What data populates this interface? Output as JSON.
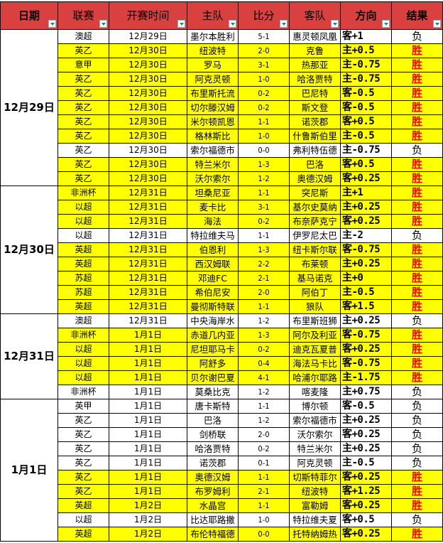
{
  "headers": {
    "date": "日期",
    "league": "联赛",
    "time": "开赛时间",
    "home": "主队",
    "score": "比分",
    "away": "客队",
    "direction": "方向",
    "result": "结果"
  },
  "colors": {
    "header_bg": "#d94141",
    "win_row": "#ffff00",
    "win_text": "#ff0000",
    "filter_arrow": "#1a8a6a"
  },
  "groups": [
    {
      "date": "12月29日",
      "rows": [
        {
          "league": "澳超",
          "time": "12月29日",
          "home": "墨尔本胜利",
          "score": "5-1",
          "away": "惠灵顿凤凰",
          "direction": "客+1",
          "result": "负"
        },
        {
          "league": "英乙",
          "time": "12月30日",
          "home": "纽波特",
          "score": "2-0",
          "away": "克鲁",
          "direction": "主+0.5",
          "result": "胜"
        },
        {
          "league": "意甲",
          "time": "12月30日",
          "home": "罗马",
          "score": "3-1",
          "away": "热那亚",
          "direction": "主-0.75",
          "result": "胜"
        },
        {
          "league": "英乙",
          "time": "12月30日",
          "home": "阿克灵顿",
          "score": "1-0",
          "away": "哈洛贾特",
          "direction": "主-0.75",
          "result": "胜"
        },
        {
          "league": "英乙",
          "time": "12月30日",
          "home": "布里斯托流",
          "score": "0-2",
          "away": "巴尼特",
          "direction": "客-0.5",
          "result": "胜"
        },
        {
          "league": "英乙",
          "time": "12月30日",
          "home": "切尔滕汉姆",
          "score": "0-2",
          "away": "斯文登",
          "direction": "客-0.5",
          "result": "胜"
        },
        {
          "league": "英乙",
          "time": "12月30日",
          "home": "米尔顿凯恩",
          "score": "1-1",
          "away": "诺茨郡",
          "direction": "客+0.5",
          "result": "胜"
        },
        {
          "league": "英乙",
          "time": "12月30日",
          "home": "格林斯比",
          "score": "1-0",
          "away": "什鲁斯伯里",
          "direction": "主-0.5",
          "result": "胜"
        },
        {
          "league": "英乙",
          "time": "12月30日",
          "home": "索尔福德市",
          "score": "0-0",
          "away": "弗利特伍德",
          "direction": "主-0.75",
          "result": "负"
        },
        {
          "league": "英乙",
          "time": "12月30日",
          "home": "特兰米尔",
          "score": "1-3",
          "away": "巴洛",
          "direction": "客+0.5",
          "result": "胜"
        },
        {
          "league": "英乙",
          "time": "12月30日",
          "home": "沃尔索尔",
          "score": "1-2",
          "away": "奥德汉姆",
          "direction": "客+0.25",
          "result": "胜"
        }
      ]
    },
    {
      "date": "12月30日",
      "rows": [
        {
          "league": "非洲杯",
          "time": "12月31日",
          "home": "坦桑尼亚",
          "score": "1-1",
          "away": "突尼斯",
          "direction": "主+1",
          "result": "胜"
        },
        {
          "league": "以超",
          "time": "12月31日",
          "home": "麦卡比",
          "score": "3-1",
          "away": "基尔史莫纳",
          "direction": "主+0.25",
          "result": "胜"
        },
        {
          "league": "以超",
          "time": "12月31日",
          "home": "海法",
          "score": "0-2",
          "away": "布奈萨克宁",
          "direction": "客+0.25",
          "result": "胜"
        },
        {
          "league": "以超",
          "time": "12月31日",
          "home": "特拉维夫马",
          "score": "1-1",
          "away": "伊罗尼太巴",
          "direction": "主-2",
          "result": "负"
        },
        {
          "league": "英超",
          "time": "12月31日",
          "home": "伯恩利",
          "score": "1-3",
          "away": "纽卡斯尔联",
          "direction": "客-0.75",
          "result": "胜"
        },
        {
          "league": "英超",
          "time": "12月31日",
          "home": "西汉姆联",
          "score": "2-2",
          "away": "布莱顿",
          "direction": "主+0.25",
          "result": "胜"
        },
        {
          "league": "苏超",
          "time": "12月31日",
          "home": "邓迪FC",
          "score": "2-1",
          "away": "基马诺克",
          "direction": "主+0",
          "result": "胜"
        },
        {
          "league": "苏超",
          "time": "12月31日",
          "home": "希伯尼安",
          "score": "2-0",
          "away": "阿伯丁",
          "direction": "主-0.5",
          "result": "胜"
        },
        {
          "league": "英超",
          "time": "12月31日",
          "home": "曼彻斯特联",
          "score": "1-1",
          "away": "狼队",
          "direction": "客+1.5",
          "result": "胜"
        }
      ]
    },
    {
      "date": "12月31日",
      "rows": [
        {
          "league": "澳超",
          "time": "12月31日",
          "home": "中央海岸水",
          "score": "1-2",
          "away": "布里斯班狮",
          "direction": "主+0.25",
          "result": "负"
        },
        {
          "league": "非洲杯",
          "time": "1月1日",
          "home": "赤道几内亚",
          "score": "1-3",
          "away": "阿尔及利亚",
          "direction": "客-0.75",
          "result": "胜"
        },
        {
          "league": "以超",
          "time": "1月1日",
          "home": "尼坦耶马卡",
          "score": "0-2",
          "away": "迪克瓦夏普",
          "direction": "客+0.25",
          "result": "胜"
        },
        {
          "league": "以超",
          "time": "1月1日",
          "home": "阿舒多",
          "score": "0-4",
          "away": "海法马卡比",
          "direction": "客-0.75",
          "result": "胜"
        },
        {
          "league": "以超",
          "time": "1月1日",
          "home": "贝尔谢巴夏",
          "score": "4-1",
          "away": "哈浦尔耶路",
          "direction": "主-1.75",
          "result": "胜"
        },
        {
          "league": "非洲杯",
          "time": "1月1日",
          "home": "莫桑比克",
          "score": "1-2",
          "away": "喀麦隆",
          "direction": "主+0.75",
          "result": "负"
        }
      ]
    },
    {
      "date": "1月1日",
      "rows": [
        {
          "league": "英甲",
          "time": "1月1日",
          "home": "唐卡斯特",
          "score": "1-1",
          "away": "博尔顿",
          "direction": "客-0.5",
          "result": "负"
        },
        {
          "league": "英乙",
          "time": "1月1日",
          "home": "巴洛",
          "score": "1-2",
          "away": "索尔福德市",
          "direction": "主+0.25",
          "result": "负"
        },
        {
          "league": "英乙",
          "time": "1月1日",
          "home": "剑桥联",
          "score": "2-0",
          "away": "沃尔索尔",
          "direction": "客+0.25",
          "result": "负"
        },
        {
          "league": "英乙",
          "time": "1月1日",
          "home": "哈洛贾特",
          "score": "0-2",
          "away": "特兰米尔",
          "direction": "主+0.25",
          "result": "负"
        },
        {
          "league": "英乙",
          "time": "1月1日",
          "home": "诺茨郡",
          "score": "0-1",
          "away": "阿克灵顿",
          "direction": "主-0.5",
          "result": "负"
        },
        {
          "league": "英乙",
          "time": "1月1日",
          "home": "奥德汉姆",
          "score": "1-1",
          "away": "切斯特菲尔",
          "direction": "客+0.25",
          "result": "胜"
        },
        {
          "league": "英乙",
          "time": "1月1日",
          "home": "布罗姆利",
          "score": "2-1",
          "away": "纽波特",
          "direction": "客+1.25",
          "result": "胜"
        },
        {
          "league": "英超",
          "time": "1月2日",
          "home": "水晶宫",
          "score": "1-1",
          "away": "富勒姆",
          "direction": "客+0.25",
          "result": "胜"
        },
        {
          "league": "以超",
          "time": "1月2日",
          "home": "比达耶路撒",
          "score": "1-0",
          "away": "特拉维夫夏",
          "direction": "客+0.5",
          "result": "负"
        },
        {
          "league": "英超",
          "time": "1月2日",
          "home": "布伦特福德",
          "score": "0-0",
          "away": "托特纳姆热",
          "direction": "客+0.25",
          "result": "胜"
        }
      ]
    }
  ]
}
